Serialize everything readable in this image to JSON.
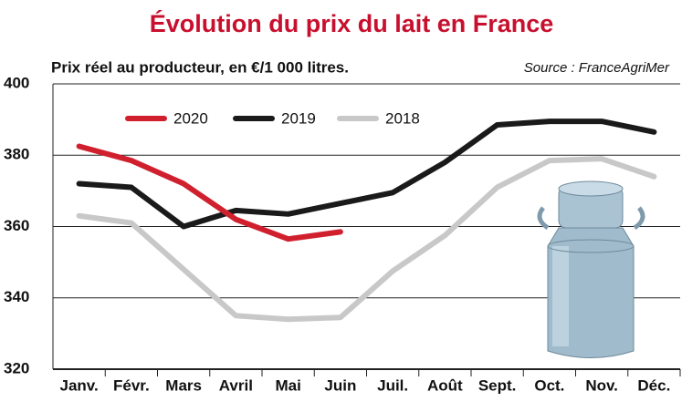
{
  "chart_data": {
    "type": "line",
    "title": "Évolution du prix du lait en France",
    "subtitle": "Prix réel au producteur, en €/1 000 litres.",
    "source": "Source : FranceAgriMer",
    "categories": [
      "Janv.",
      "Févr.",
      "Mars",
      "Avril",
      "Mai",
      "Juin",
      "Juil.",
      "Août",
      "Sept.",
      "Oct.",
      "Nov.",
      "Déc."
    ],
    "series": [
      {
        "name": "2020",
        "color": "#d0202e",
        "values": [
          382.5,
          378.5,
          372,
          362,
          356.5,
          358.5,
          null,
          null,
          null,
          null,
          null,
          null
        ]
      },
      {
        "name": "2019",
        "color": "#1a1a1a",
        "values": [
          372,
          371,
          360,
          364.5,
          363.5,
          366.5,
          369.5,
          378,
          388.5,
          389.5,
          389.5,
          386.5
        ]
      },
      {
        "name": "2018",
        "color": "#c8c8c8",
        "values": [
          363,
          361,
          348,
          335,
          334,
          334.5,
          347.5,
          357.5,
          371,
          378.5,
          379,
          374
        ]
      }
    ],
    "ylim": [
      320,
      400
    ],
    "yticks": [
      320,
      340,
      360,
      380,
      400
    ],
    "grid": true
  }
}
